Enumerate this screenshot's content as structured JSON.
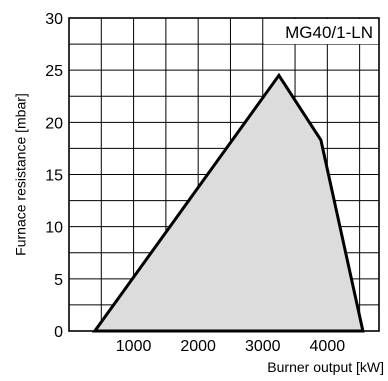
{
  "chart_data": {
    "type": "area",
    "title": "MG40/1-LN",
    "xlabel": "Burner output [kW]",
    "ylabel": "Furnace resistance [mbar]",
    "xlim": [
      0,
      4800
    ],
    "ylim": [
      0,
      30
    ],
    "x_ticks": [
      1000,
      2000,
      3000,
      4000
    ],
    "y_ticks": [
      0,
      5,
      10,
      15,
      20,
      25,
      30
    ],
    "grid": true,
    "series": [
      {
        "x": [
          400,
          3250,
          3900,
          4550,
          400
        ],
        "y": [
          0,
          24.5,
          18.3,
          0,
          0
        ]
      }
    ],
    "fill_color": "#dcdcdc",
    "line_color": "#000000"
  }
}
